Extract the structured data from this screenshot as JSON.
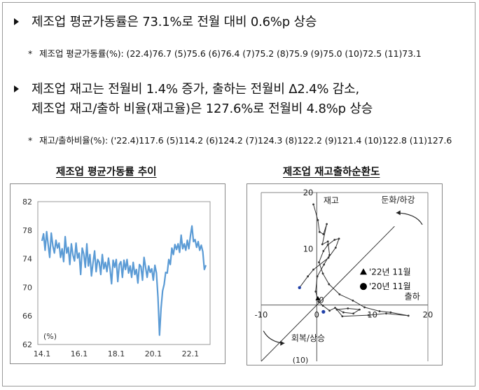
{
  "section1": {
    "headline": "제조업 평균가동률은 73.1%로 전월 대비 0.6%p 상승",
    "note_marker": "*",
    "note": "제조업 평균가동률(%): (22.4)76.7 (5)75.6 (6)76.4 (7)75.2 (8)75.9 (9)75.0 (10)72.5 (11)73.1"
  },
  "section2": {
    "headline_line1": "제조업 재고는 전월비 1.4% 증가, 출하는 전월비 Δ2.4% 감소,",
    "headline_line2": "제조업 재고/출하 비율(재고율)은 127.6%로 전월비 4.8%p 상승",
    "note_marker": "*",
    "note": "재고/출하비율(%): ('22.4)117.6 (5)114.2 (6)124.2 (7)124.3 (8)122.2 (9)121.4 (10)122.8 (11)127.6"
  },
  "colors": {
    "line": "#5b9bd5",
    "axis": "#888888",
    "text": "#111111",
    "marker_2020": "#1f3fa8"
  },
  "chart_data": [
    {
      "type": "line",
      "title": "제조업 평균가동률 추이",
      "ylabel": "(%)",
      "ylim": [
        62,
        82
      ],
      "yticks": [
        "82",
        "78",
        "74",
        "70",
        "66",
        "62"
      ],
      "xticks": [
        "14.1",
        "16.1",
        "18.1",
        "20.1",
        "22.1"
      ],
      "x": [
        "14.1",
        "14.2",
        "14.3",
        "14.4",
        "14.5",
        "14.6",
        "14.7",
        "14.8",
        "14.9",
        "14.10",
        "14.11",
        "14.12",
        "15.1",
        "15.2",
        "15.3",
        "15.4",
        "15.5",
        "15.6",
        "15.7",
        "15.8",
        "15.9",
        "15.10",
        "15.11",
        "15.12",
        "16.1",
        "16.2",
        "16.3",
        "16.4",
        "16.5",
        "16.6",
        "16.7",
        "16.8",
        "16.9",
        "16.10",
        "16.11",
        "16.12",
        "17.1",
        "17.2",
        "17.3",
        "17.4",
        "17.5",
        "17.6",
        "17.7",
        "17.8",
        "17.9",
        "17.10",
        "17.11",
        "17.12",
        "18.1",
        "18.2",
        "18.3",
        "18.4",
        "18.5",
        "18.6",
        "18.7",
        "18.8",
        "18.9",
        "18.10",
        "18.11",
        "18.12",
        "19.1",
        "19.2",
        "19.3",
        "19.4",
        "19.5",
        "19.6",
        "19.7",
        "19.8",
        "19.9",
        "19.10",
        "19.11",
        "19.12",
        "20.1",
        "20.2",
        "20.3",
        "20.4",
        "20.5",
        "20.6",
        "20.7",
        "20.8",
        "20.9",
        "20.10",
        "20.11",
        "20.12",
        "21.1",
        "21.2",
        "21.3",
        "21.4",
        "21.5",
        "21.6",
        "21.7",
        "21.8",
        "21.9",
        "21.10",
        "21.11",
        "21.12",
        "22.1",
        "22.2",
        "22.3",
        "22.4",
        "22.5",
        "22.6",
        "22.7",
        "22.8",
        "22.9",
        "22.10",
        "22.11"
      ],
      "values": [
        76.5,
        77.5,
        75.2,
        77.8,
        76.0,
        74.2,
        77.6,
        75.8,
        74.8,
        76.6,
        75.5,
        76.2,
        74.2,
        75.4,
        73.6,
        77.1,
        74.8,
        75.6,
        73.2,
        76.1,
        74.5,
        73.7,
        76.2,
        74.1,
        74.8,
        71.8,
        75.5,
        74.7,
        72.8,
        76.1,
        73.0,
        74.6,
        71.6,
        73.4,
        75.1,
        72.2,
        73.9,
        73.5,
        71.8,
        74.6,
        72.6,
        73.5,
        72.2,
        74.1,
        72.6,
        70.5,
        73.8,
        72.8,
        73.9,
        70.8,
        73.2,
        73.6,
        71.4,
        73.8,
        72.5,
        73.9,
        72.0,
        73.0,
        71.4,
        73.5,
        71.8,
        72.5,
        70.6,
        73.2,
        72.9,
        71.0,
        74.2,
        72.8,
        71.4,
        73.0,
        72.1,
        72.6,
        71.0,
        73.1,
        72.0,
        68.6,
        63.3,
        67.1,
        69.5,
        70.4,
        72.1,
        72.0,
        73.9,
        73.2,
        75.5,
        74.6,
        76.0,
        75.3,
        76.1,
        74.9,
        77.3,
        75.4,
        76.1,
        75.2,
        76.6,
        75.4,
        77.2,
        78.6,
        76.4,
        76.7,
        75.6,
        76.4,
        75.2,
        75.9,
        75.0,
        72.5,
        73.1
      ]
    },
    {
      "type": "scatter",
      "title": "제조업 재고출하순환도",
      "xlim": [
        -10,
        20
      ],
      "ylim": [
        -10,
        20
      ],
      "xticks": [
        "-10",
        "0",
        "10",
        "20"
      ],
      "yticks": [
        "20",
        "10",
        "0"
      ],
      "xlabel": "출하",
      "ylabel": "재고",
      "quadrant_labels": {
        "top_right": "둔화/하강",
        "bottom_left": "회복/상승"
      },
      "bottom_tick_partial": "(10)",
      "legend": [
        {
          "marker": "triangle",
          "label": "'22년 11월"
        },
        {
          "marker": "circle",
          "label": "'20년 11월"
        }
      ],
      "path": [
        [
          -0.6,
          17.9
        ],
        [
          0.2,
          15.1
        ],
        [
          0.5,
          13.0
        ],
        [
          1.2,
          12.6
        ],
        [
          1.8,
          14.4
        ],
        [
          1.0,
          10.8
        ],
        [
          2.0,
          11.3
        ],
        [
          2.3,
          8.9
        ],
        [
          1.3,
          7.2
        ],
        [
          0.1,
          5.1
        ],
        [
          -0.2,
          2.4
        ],
        [
          0.3,
          0.6
        ],
        [
          1.1,
          -0.1
        ],
        [
          2.3,
          -1.0
        ],
        [
          3.3,
          -0.5
        ],
        [
          4.8,
          -1.3
        ],
        [
          6.6,
          -1.5
        ],
        [
          7.7,
          -0.8
        ],
        [
          5.6,
          -0.6
        ],
        [
          3.6,
          -0.8
        ],
        [
          4.6,
          -2.0
        ],
        [
          9.3,
          -1.8
        ],
        [
          12.5,
          -1.5
        ],
        [
          16.5,
          -1.9
        ],
        [
          13.3,
          -1.3
        ],
        [
          11.3,
          -1.1
        ],
        [
          8.6,
          -0.4
        ],
        [
          6.5,
          0.8
        ],
        [
          4.1,
          1.9
        ],
        [
          2.2,
          3.7
        ],
        [
          1.1,
          5.6
        ],
        [
          0.4,
          7.6
        ],
        [
          1.2,
          9.6
        ],
        [
          2.0,
          10.7
        ],
        [
          3.2,
          11.6
        ],
        [
          4.0,
          11.8
        ],
        [
          3.4,
          10.2
        ],
        [
          2.1,
          8.4
        ],
        [
          -0.6,
          6.3
        ],
        [
          -1.6,
          5.1
        ],
        [
          -3.1,
          3.1
        ]
      ],
      "marker_2022_11": [
        0.2,
        1.1
      ],
      "marker_2020_11": [
        1.2,
        -1.2
      ]
    }
  ]
}
